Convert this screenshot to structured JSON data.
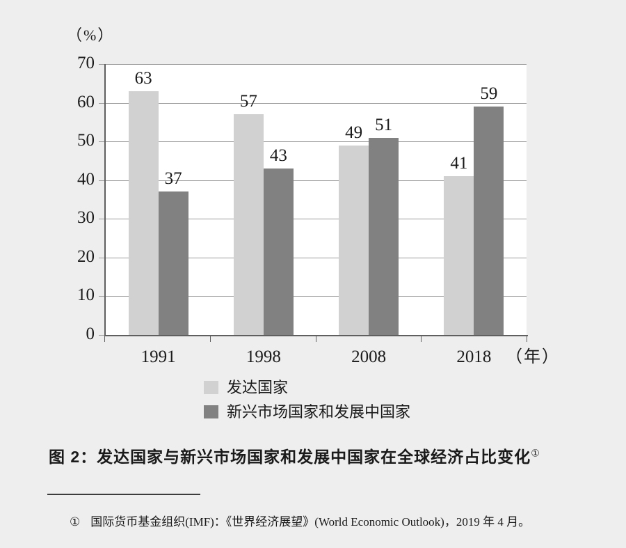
{
  "chart_data": {
    "type": "bar",
    "title": "图 2：发达国家与新兴市场国家和发展中国家在全球经济占比变化",
    "unit_label": "（%）",
    "x_unit_label": "（年）",
    "categories": [
      "1991",
      "1998",
      "2008",
      "2018"
    ],
    "series": [
      {
        "name": "发达国家",
        "color": "#d1d1d1",
        "values": [
          63,
          57,
          49,
          41
        ]
      },
      {
        "name": "新兴市场国家和发展中国家",
        "color": "#818181",
        "values": [
          37,
          43,
          51,
          59
        ]
      }
    ],
    "ylim": [
      0,
      70
    ],
    "y_tick_step": 10,
    "y_ticks": [
      0,
      10,
      20,
      30,
      40,
      50,
      60,
      70
    ],
    "grid": true,
    "value_labels_shown": true,
    "legend_position": "bottom-center",
    "colors": {
      "page_background": "#eeeeee",
      "plot_background": "#ffffff",
      "gridline": "#9a9a9a",
      "axis": "#5f5f5f",
      "text": "#1a1a1a"
    }
  },
  "caption": {
    "text": "图 2：发达国家与新兴市场国家和发展中国家在全球经济占比变化",
    "footnote_ref": "①"
  },
  "footnote": {
    "marker": "①",
    "text": "国际货币基金组织(IMF)：《世界经济展望》(World Economic Outlook)，2019 年 4 月。"
  }
}
